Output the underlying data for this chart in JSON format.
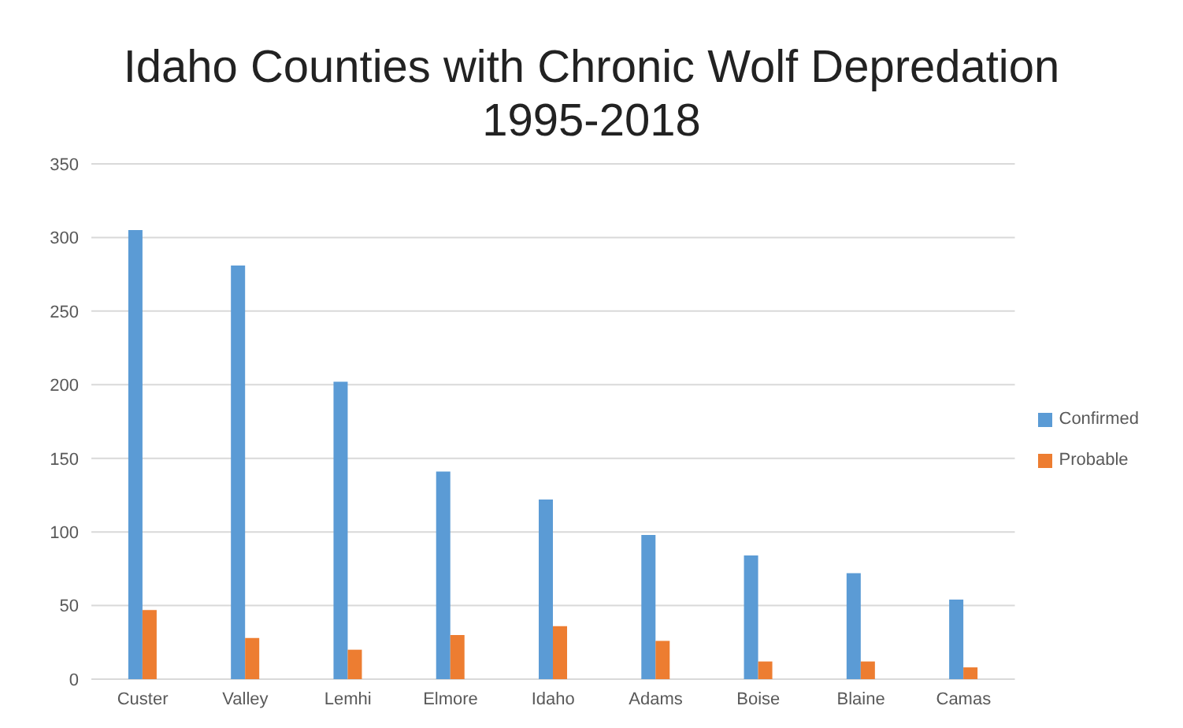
{
  "chart_data": {
    "type": "bar",
    "title": "Idaho Counties with Chronic Wolf Depredation",
    "subtitle": "1995-2018",
    "categories": [
      "Custer",
      "Valley",
      "Lemhi",
      "Elmore",
      "Idaho",
      "Adams",
      "Boise",
      "Blaine",
      "Camas"
    ],
    "series": [
      {
        "name": "Confirmed",
        "color": "#5b9bd5",
        "values": [
          305,
          281,
          202,
          141,
          122,
          98,
          84,
          72,
          54
        ]
      },
      {
        "name": "Probable",
        "color": "#ed7d31",
        "values": [
          47,
          28,
          20,
          30,
          36,
          26,
          12,
          12,
          8
        ]
      }
    ],
    "ylim": [
      0,
      350
    ],
    "yticks": [
      0,
      50,
      100,
      150,
      200,
      250,
      300,
      350
    ],
    "grid": "y",
    "legend": "right"
  }
}
